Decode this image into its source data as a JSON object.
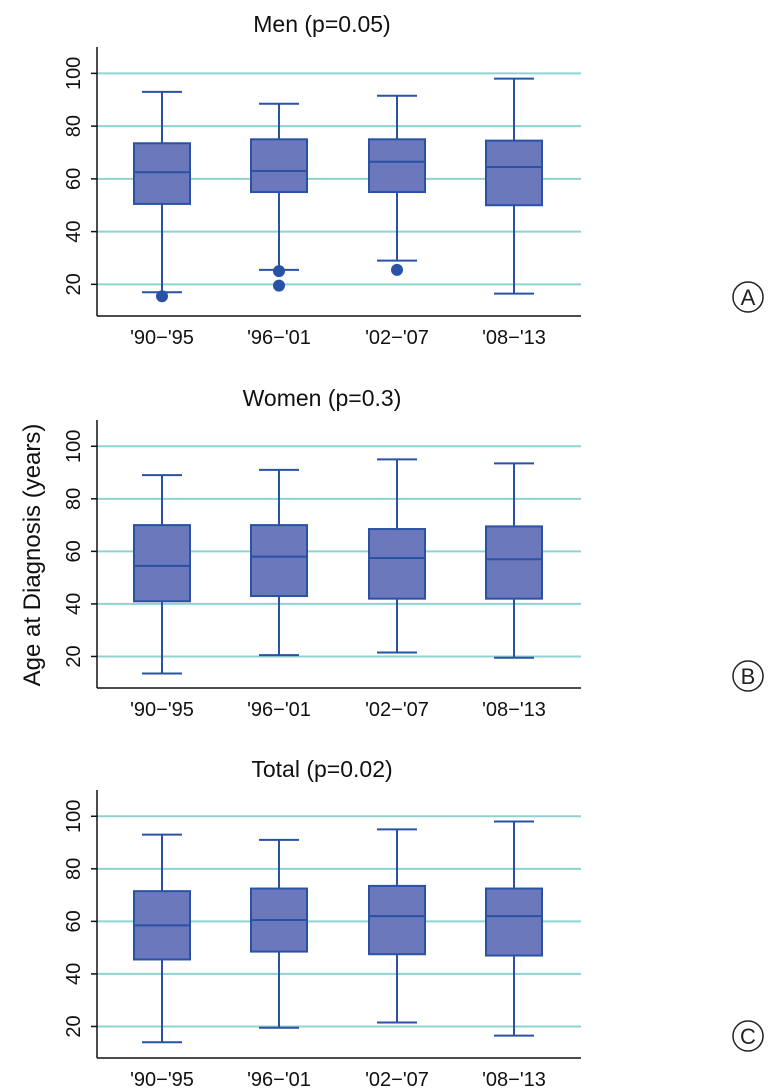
{
  "figure": {
    "y_axis_label": "Age at Diagnosis (years)",
    "colors": {
      "box_fill": "#6b78bc",
      "box_stroke": "#2a52a4",
      "gridline": "#8fd3d0",
      "axis": "#111111"
    }
  },
  "chart_data": [
    {
      "type": "box",
      "panel_label": "A",
      "title": "Men (p=0.05)",
      "categories": [
        "'90−'95",
        "'96−'01",
        "'02−'07",
        "'08−'13"
      ],
      "ylim": [
        8,
        110
      ],
      "yticks": [
        20,
        40,
        60,
        80,
        100
      ],
      "grid": true,
      "boxes": [
        {
          "min": 17,
          "q1": 50.5,
          "median": 62.5,
          "q3": 73.5,
          "max": 93,
          "outliers": [
            15.5
          ]
        },
        {
          "min": 25.5,
          "q1": 55,
          "median": 63,
          "q3": 75,
          "max": 88.5,
          "outliers": [
            25,
            19.5
          ]
        },
        {
          "min": 29,
          "q1": 55,
          "median": 66.5,
          "q3": 75,
          "max": 91.5,
          "outliers": [
            25.5
          ]
        },
        {
          "min": 16.5,
          "q1": 50,
          "median": 64.5,
          "q3": 74.5,
          "max": 98,
          "outliers": []
        }
      ]
    },
    {
      "type": "box",
      "panel_label": "B",
      "title": "Women (p=0.3)",
      "categories": [
        "'90−'95",
        "'96−'01",
        "'02−'07",
        "'08−'13"
      ],
      "ylim": [
        8,
        110
      ],
      "yticks": [
        20,
        40,
        60,
        80,
        100
      ],
      "grid": true,
      "boxes": [
        {
          "min": 13.5,
          "q1": 41,
          "median": 54.5,
          "q3": 70,
          "max": 89,
          "outliers": []
        },
        {
          "min": 20.5,
          "q1": 43,
          "median": 58,
          "q3": 70,
          "max": 91,
          "outliers": []
        },
        {
          "min": 21.5,
          "q1": 42,
          "median": 57.5,
          "q3": 68.5,
          "max": 95,
          "outliers": []
        },
        {
          "min": 19.5,
          "q1": 42,
          "median": 57,
          "q3": 69.5,
          "max": 93.5,
          "outliers": []
        }
      ]
    },
    {
      "type": "box",
      "panel_label": "C",
      "title": "Total (p=0.02)",
      "categories": [
        "'90−'95",
        "'96−'01",
        "'02−'07",
        "'08−'13"
      ],
      "ylim": [
        8,
        110
      ],
      "yticks": [
        20,
        40,
        60,
        80,
        100
      ],
      "grid": true,
      "boxes": [
        {
          "min": 14,
          "q1": 45.5,
          "median": 58.5,
          "q3": 71.5,
          "max": 93,
          "outliers": []
        },
        {
          "min": 19.5,
          "q1": 48.5,
          "median": 60.5,
          "q3": 72.5,
          "max": 91,
          "outliers": []
        },
        {
          "min": 21.5,
          "q1": 47.5,
          "median": 62,
          "q3": 73.5,
          "max": 95,
          "outliers": []
        },
        {
          "min": 16.5,
          "q1": 47,
          "median": 62,
          "q3": 72.5,
          "max": 98,
          "outliers": []
        }
      ]
    }
  ]
}
